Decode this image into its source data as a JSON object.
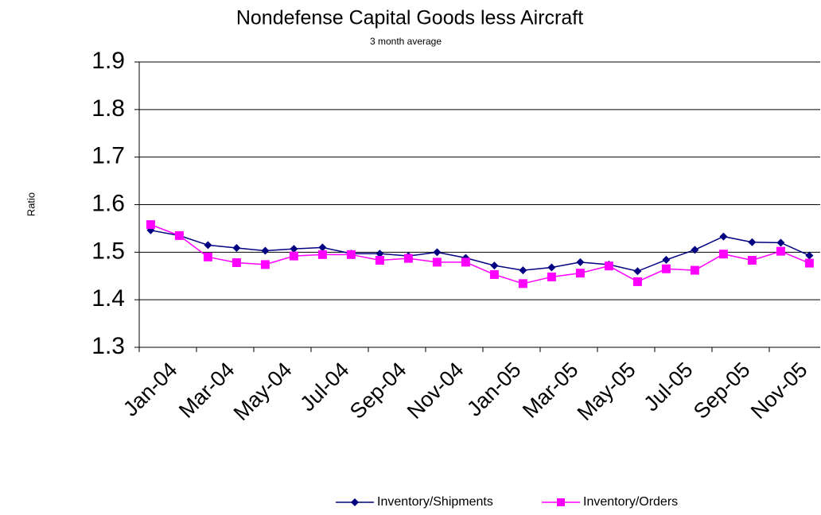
{
  "chart_data": {
    "type": "line",
    "title": "Nondefense Capital Goods less Aircraft",
    "subtitle": "3 month average",
    "y_label": "Ratio",
    "categories": [
      "Jan-04",
      null,
      "Mar-04",
      null,
      "May-04",
      null,
      "Jul-04",
      null,
      "Sep-04",
      null,
      "Nov-04",
      null,
      "Jan-05",
      null,
      "Mar-05",
      null,
      "May-05",
      null,
      "Jul-05",
      null,
      "Sep-05",
      null,
      "Nov-05",
      null
    ],
    "series": [
      {
        "name": "Inventory/Shipments",
        "color": "#000080",
        "marker": "diamond",
        "values": [
          1.546,
          1.535,
          1.515,
          1.509,
          1.503,
          1.507,
          1.51,
          1.497,
          1.497,
          1.492,
          1.5,
          1.488,
          1.472,
          1.462,
          1.468,
          1.479,
          1.474,
          1.46,
          1.484,
          1.505,
          1.533,
          1.521,
          1.52,
          1.493
        ]
      },
      {
        "name": "Inventory/Orders",
        "color": "#ff00ff",
        "marker": "square",
        "values": [
          1.558,
          1.535,
          1.49,
          1.478,
          1.474,
          1.492,
          1.495,
          1.495,
          1.483,
          1.487,
          1.479,
          1.479,
          1.453,
          1.434,
          1.448,
          1.456,
          1.471,
          1.438,
          1.465,
          1.462,
          1.496,
          1.483,
          1.502,
          1.477
        ]
      }
    ],
    "ylim": [
      1.3,
      1.9
    ],
    "yticks": [
      1.3,
      1.4,
      1.5,
      1.6,
      1.7,
      1.8,
      1.9
    ],
    "grid": true,
    "legend": "bottom"
  }
}
